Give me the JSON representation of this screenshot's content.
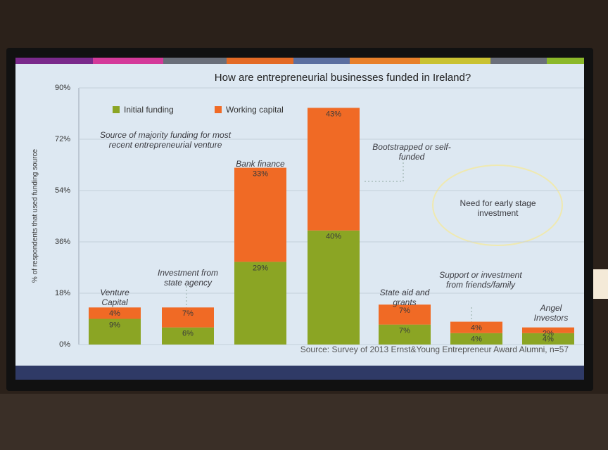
{
  "chart_data": {
    "type": "stacked-bar",
    "title": "How are entrepreneurial businesses funded in Ireland?",
    "y_label": "% of respondents that used funding source",
    "categories": [
      "Venture Capital",
      "Investment from state agency",
      "Bank finance",
      "Bootstrapped or self-funded",
      "State aid and grants",
      "Support or investment from friends/family",
      "Angel Investors"
    ],
    "series": [
      {
        "name": "Initial funding",
        "color": "#8ba524",
        "values": [
          9,
          6,
          29,
          40,
          7,
          4,
          4
        ],
        "value_labels": [
          "9%",
          "6%",
          "29%",
          "40%",
          "7%",
          "4%",
          "4%"
        ]
      },
      {
        "name": "Working capital",
        "color": "#f06a25",
        "values": [
          4,
          7,
          33,
          43,
          7,
          4,
          2
        ],
        "value_labels": [
          "4%",
          "7%",
          "33%",
          "43%",
          "7%",
          "4%",
          "2%"
        ]
      }
    ],
    "ylim": [
      0,
      90
    ],
    "yticks": [
      {
        "value": 0,
        "label": "0%"
      },
      {
        "value": 18,
        "label": "18%"
      },
      {
        "value": 36,
        "label": "36%"
      },
      {
        "value": 54,
        "label": "54%"
      },
      {
        "value": 72,
        "label": "72%"
      },
      {
        "value": 90,
        "label": "90%"
      }
    ],
    "grid": true,
    "annotations": [
      "Source of majority funding for most recent entrepreneurial venture",
      "Need for early stage investment"
    ],
    "source": "Source: Survey of 2013 Ernst&Young Entrepreneur Award Alumni, n=57"
  }
}
